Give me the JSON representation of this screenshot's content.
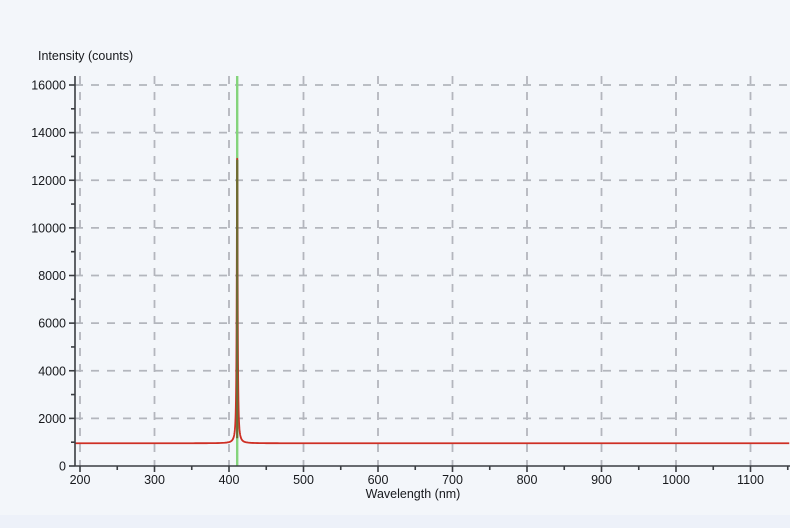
{
  "page": {
    "background_color": "#f3f6fa",
    "bottom_strip_color": "#edf1f9"
  },
  "chart_data": {
    "type": "line",
    "title": "Intensity (counts)",
    "xlabel": "Wavelength (nm)",
    "ylabel": "Intensity (counts)",
    "xlim": [
      193,
      1153
    ],
    "ylim": [
      0,
      16430
    ],
    "x_ticks_major": [
      200,
      300,
      400,
      500,
      600,
      700,
      800,
      900,
      1000,
      1100
    ],
    "x_minor_tick_step": 50,
    "y_ticks_major": [
      0,
      2000,
      4000,
      6000,
      8000,
      10000,
      12000,
      14000,
      16000
    ],
    "y_minor_tick_step": 1000,
    "grid": "dashed",
    "grid_color": "#b3b6bd",
    "axis_color": "#3a3d42",
    "series": [
      {
        "name": "spectrum",
        "color": "#ce2f24",
        "baseline_counts": 955,
        "peak": {
          "wavelength_nm": 411,
          "intensity_counts": 12900,
          "fwhm_nm": 1.4
        }
      }
    ],
    "cursor_line": {
      "name": "wavelength-cursor",
      "wavelength_nm": 411,
      "color": "#84d47c",
      "overlap_color": "#6b6d33"
    },
    "legend": null
  }
}
